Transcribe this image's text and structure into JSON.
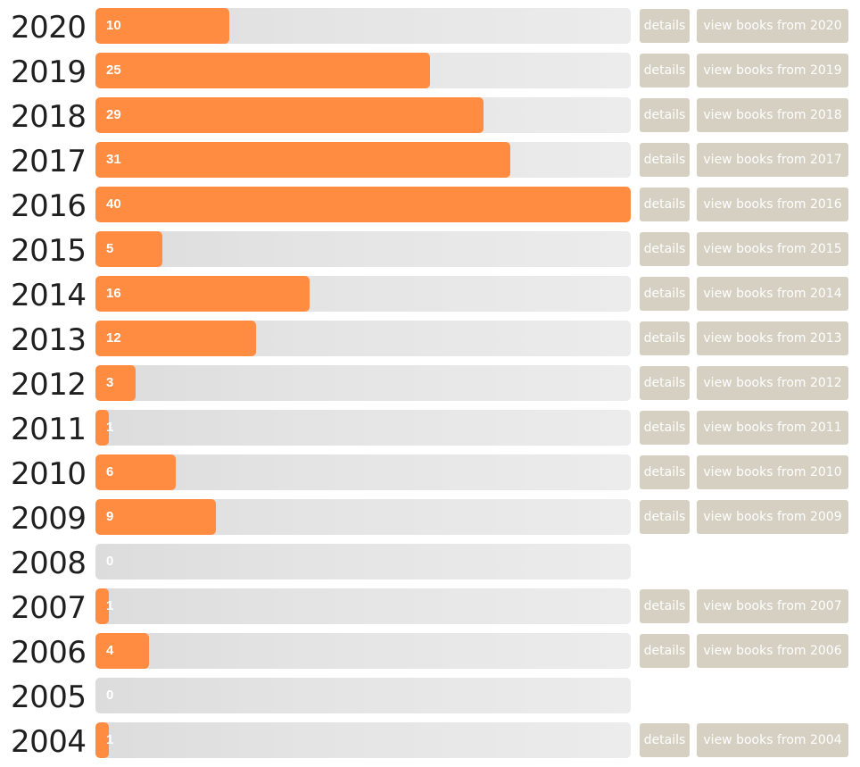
{
  "colors": {
    "bar_fill": "#ff8c40",
    "track": "#e4e4e4",
    "button_bg": "#d6d0c2",
    "button_text": "#ffffff",
    "count_text": "#ffffff",
    "year_text": "#1f1f1f"
  },
  "chart_data": {
    "type": "bar",
    "orientation": "horizontal",
    "categories": [
      "2020",
      "2019",
      "2018",
      "2017",
      "2016",
      "2015",
      "2014",
      "2013",
      "2012",
      "2011",
      "2010",
      "2009",
      "2008",
      "2007",
      "2006",
      "2005",
      "2004"
    ],
    "values": [
      10,
      25,
      29,
      31,
      40,
      5,
      16,
      12,
      3,
      1,
      6,
      9,
      0,
      1,
      4,
      0,
      1
    ],
    "xlim": [
      0,
      40
    ],
    "grid": false,
    "legend": "none"
  },
  "rows": [
    {
      "year": "2020",
      "count": "10",
      "details": "details",
      "view": "view books from 2020"
    },
    {
      "year": "2019",
      "count": "25",
      "details": "details",
      "view": "view books from 2019"
    },
    {
      "year": "2018",
      "count": "29",
      "details": "details",
      "view": "view books from 2018"
    },
    {
      "year": "2017",
      "count": "31",
      "details": "details",
      "view": "view books from 2017"
    },
    {
      "year": "2016",
      "count": "40",
      "details": "details",
      "view": "view books from 2016"
    },
    {
      "year": "2015",
      "count": "5",
      "details": "details",
      "view": "view books from 2015"
    },
    {
      "year": "2014",
      "count": "16",
      "details": "details",
      "view": "view books from 2014"
    },
    {
      "year": "2013",
      "count": "12",
      "details": "details",
      "view": "view books from 2013"
    },
    {
      "year": "2012",
      "count": "3",
      "details": "details",
      "view": "view books from 2012"
    },
    {
      "year": "2011",
      "count": "1",
      "details": "details",
      "view": "view books from 2011"
    },
    {
      "year": "2010",
      "count": "6",
      "details": "details",
      "view": "view books from 2010"
    },
    {
      "year": "2009",
      "count": "9",
      "details": "details",
      "view": "view books from 2009"
    },
    {
      "year": "2008",
      "count": "0",
      "details": null,
      "view": null
    },
    {
      "year": "2007",
      "count": "1",
      "details": "details",
      "view": "view books from 2007"
    },
    {
      "year": "2006",
      "count": "4",
      "details": "details",
      "view": "view books from 2006"
    },
    {
      "year": "2005",
      "count": "0",
      "details": null,
      "view": null
    },
    {
      "year": "2004",
      "count": "1",
      "details": "details",
      "view": "view books from 2004"
    }
  ]
}
